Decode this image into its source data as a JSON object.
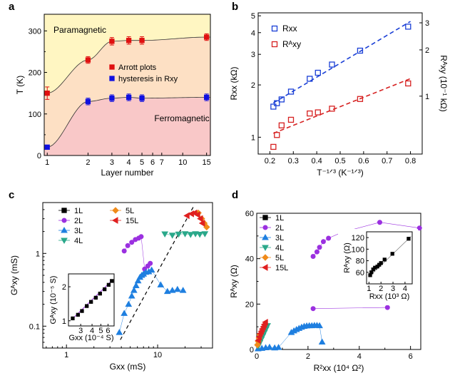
{
  "panels": {
    "a": "a",
    "b": "b",
    "c": "c",
    "d": "d"
  },
  "chart_data": [
    {
      "panel": "a",
      "type": "scatter",
      "xlabel": "Layer number",
      "ylabel": "T (K)",
      "xscale": "log",
      "xlim": [
        0.95,
        16
      ],
      "ylim": [
        0,
        340
      ],
      "xticks": [
        "1",
        "2",
        "3",
        "4",
        "5",
        "6",
        "7",
        "10",
        "15"
      ],
      "yticks": [
        "0",
        "100",
        "200",
        "300"
      ],
      "region_labels": [
        "Paramagnetic",
        "Ferromagnetic"
      ],
      "region_colors": {
        "para": "#fff6c2",
        "mid": "#fde0c4",
        "ferro": "#f9c8c8"
      },
      "series": [
        {
          "name": "Arrott plots",
          "color": "#e01010",
          "x": [
            1,
            2,
            3,
            4,
            5,
            15
          ],
          "y": [
            150,
            230,
            275,
            277,
            277,
            285
          ],
          "err": [
            15,
            8,
            9,
            9,
            9,
            8
          ]
        },
        {
          "name": "hysteresis in R_xy",
          "color": "#1010e0",
          "x": [
            1,
            2,
            3,
            4,
            5,
            15
          ],
          "y": [
            20,
            130,
            138,
            140,
            138,
            140
          ],
          "err": [
            5,
            8,
            8,
            8,
            8,
            8
          ]
        }
      ]
    },
    {
      "panel": "b",
      "type": "scatter",
      "xlabel": "T^-1/3 (K^-1/3)",
      "ylabel": "R_xx (kΩ)",
      "y2label": "R^A_xy (10^-1 kΩ)",
      "xlim": [
        0.15,
        0.85
      ],
      "yscale": "log",
      "ylim": [
        0.8,
        5.2
      ],
      "xticks": [
        "0.2",
        "0.3",
        "0.4",
        "0.5",
        "0.6",
        "0.7",
        "0.8"
      ],
      "yticks": [
        "1",
        "2",
        "3",
        "4",
        "5"
      ],
      "y2ticks": [
        "1",
        "2",
        "3"
      ],
      "series": [
        {
          "name": "R_xx",
          "color": "#1a3fd6",
          "x": [
            0.215,
            0.23,
            0.25,
            0.29,
            0.37,
            0.405,
            0.465,
            0.585,
            0.79
          ],
          "y": [
            1.5,
            1.57,
            1.65,
            1.83,
            2.17,
            2.35,
            2.62,
            3.15,
            4.33
          ]
        },
        {
          "name": "R^A_xy",
          "color": "#d62020",
          "x": [
            0.215,
            0.23,
            0.25,
            0.29,
            0.37,
            0.405,
            0.465,
            0.585,
            0.79
          ],
          "y": [
            0.88,
            1.03,
            1.17,
            1.26,
            1.37,
            1.39,
            1.46,
            1.66,
            2.04
          ]
        }
      ]
    },
    {
      "panel": "c",
      "type": "scatter",
      "xlabel": "G_xx (mS)",
      "ylabel": "G^A_xy (mS)",
      "xscale": "log",
      "yscale": "log",
      "xlim": [
        0.55,
        40
      ],
      "ylim": [
        0.05,
        5
      ],
      "xticks": [
        "1",
        "10"
      ],
      "yticks": [
        "0.1",
        "1"
      ],
      "series": [
        {
          "name": "1L",
          "color": "#000000",
          "marker": "square",
          "x": [],
          "y": []
        },
        {
          "name": "2L",
          "color": "#9b30e0",
          "marker": "circle",
          "x": [
            4.3,
            4.7,
            5.2,
            5.7,
            6.2,
            6.6,
            7.2,
            7.8,
            8.3
          ],
          "y": [
            1.08,
            1.28,
            1.42,
            1.55,
            1.62,
            1.7,
            0.61,
            0.67,
            0.73
          ]
        },
        {
          "name": "3L",
          "color": "#1e7fe0",
          "marker": "triangle-up",
          "x": [
            3.8,
            4.3,
            4.8,
            5.2,
            5.5,
            5.8,
            6.1,
            6.4,
            6.7,
            7.0,
            7.4,
            8.0,
            8.6,
            10.8,
            12.8,
            14.5,
            16.5,
            19.0
          ],
          "y": [
            0.082,
            0.15,
            0.2,
            0.26,
            0.31,
            0.36,
            0.42,
            0.47,
            0.5,
            0.52,
            0.55,
            0.56,
            0.59,
            0.37,
            0.3,
            0.31,
            0.32,
            0.31
          ]
        },
        {
          "name": "4L",
          "color": "#2aa88a",
          "marker": "triangle-down",
          "x": [
            12.0,
            14.5,
            17.0,
            20.0,
            23.0,
            26.0,
            29.0,
            33.0
          ],
          "y": [
            1.85,
            1.78,
            1.84,
            1.86,
            1.82,
            1.86,
            1.83,
            1.86
          ]
        },
        {
          "name": "5L",
          "color": "#f08b1a",
          "marker": "diamond",
          "x": [
            28.0,
            30.5,
            32.5,
            34.5
          ],
          "y": [
            3.6,
            3.0,
            2.6,
            2.3
          ]
        },
        {
          "name": "15L",
          "color": "#e02020",
          "marker": "triangle-left",
          "x": [
            21.0,
            23.5,
            25.5,
            27.5,
            29.5,
            31.0
          ],
          "y": [
            3.3,
            3.5,
            3.6,
            3.4,
            3.0,
            2.6
          ]
        }
      ],
      "inset": {
        "xlabel": "G_xx (10^-4 S)",
        "ylabel": "G^A_xy (10^-5 S)",
        "xscale": "log",
        "yscale": "log",
        "xlim": [
          2.2,
          7
        ],
        "ylim": [
          0.9,
          2.6
        ],
        "xticks": [
          "3",
          "4",
          "5",
          "6"
        ],
        "yticks": [
          "1",
          "2"
        ],
        "x": [
          2.45,
          2.8,
          3.1,
          3.5,
          3.9,
          4.4,
          4.9,
          5.5,
          6.1,
          6.6
        ],
        "y": [
          1.05,
          1.13,
          1.22,
          1.35,
          1.47,
          1.6,
          1.74,
          1.9,
          2.08,
          2.25
        ]
      }
    },
    {
      "panel": "d",
      "type": "scatter",
      "xlabel": "R^2_xx (10^4 Ω^2)",
      "ylabel": "R^A_xy (Ω)",
      "xlim": [
        0,
        6.4
      ],
      "ylim": [
        0,
        60
      ],
      "xticks": [
        "0",
        "2",
        "4",
        "6"
      ],
      "yticks": [
        "0",
        "20",
        "40",
        "60"
      ],
      "series": [
        {
          "name": "1L",
          "color": "#000000",
          "marker": "square",
          "x": [],
          "y": []
        },
        {
          "name": "2L",
          "color": "#9b30e0",
          "marker": "circle",
          "x": [
            2.2,
            2.35,
            2.45,
            2.6,
            2.8,
            3.3,
            4.8,
            6.35,
            2.2,
            5.1
          ],
          "y": [
            41.0,
            43.0,
            45.0,
            47.5,
            49.0,
            51.5,
            56.0,
            53.5,
            18.0,
            18.5
          ]
        },
        {
          "name": "3L",
          "color": "#1e7fe0",
          "marker": "triangle-up",
          "x": [
            0.05,
            0.2,
            0.35,
            0.5,
            0.7,
            0.85,
            1.35,
            1.45,
            1.55,
            1.65,
            1.75,
            1.85,
            1.95,
            2.05,
            2.15,
            2.25,
            2.35,
            2.45,
            2.55
          ],
          "y": [
            0.3,
            0.5,
            0.8,
            1.0,
            0.7,
            0.9,
            7.5,
            8.2,
            8.8,
            9.3,
            9.8,
            10.2,
            10.4,
            10.5,
            10.5,
            10.6,
            10.6,
            10.5,
            3.3
          ]
        },
        {
          "name": "4L",
          "color": "#2aa88a",
          "marker": "triangle-down",
          "x": [
            0.06,
            0.12,
            0.18,
            0.24,
            0.3,
            0.36,
            0.42
          ],
          "y": [
            1.5,
            3,
            4.5,
            6,
            7.5,
            9,
            10.5
          ]
        },
        {
          "name": "5L",
          "color": "#f08b1a",
          "marker": "diamond",
          "x": [
            0.03,
            0.06,
            0.09,
            0.12
          ],
          "y": [
            2,
            3.5,
            5,
            6.5
          ]
        },
        {
          "name": "15L",
          "color": "#e02020",
          "marker": "triangle-left",
          "x": [
            0.06,
            0.1,
            0.14,
            0.18,
            0.22,
            0.26,
            0.3,
            0.34
          ],
          "y": [
            4,
            5.5,
            7,
            8,
            9,
            10,
            11,
            12
          ]
        }
      ],
      "inset": {
        "xlabel": "R_xx (10^3 Ω)",
        "ylabel": "R^A_xy (Ω)",
        "xlim": [
          0.8,
          4.6
        ],
        "ylim": [
          40,
          130
        ],
        "xticks": [
          "1",
          "2",
          "3",
          "4"
        ],
        "yticks": [
          "60",
          "80",
          "100",
          "120"
        ],
        "x": [
          1.1,
          1.2,
          1.35,
          1.5,
          1.7,
          1.85,
          2.0,
          2.3,
          2.95,
          4.3
        ],
        "y": [
          55,
          60,
          65,
          68,
          70,
          73,
          76,
          82,
          92,
          118
        ]
      }
    }
  ]
}
